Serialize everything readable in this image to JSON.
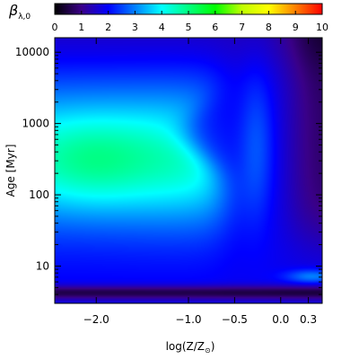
{
  "chart_data": {
    "type": "heatmap",
    "colorbar": {
      "label": "β",
      "label_subscript": "λ,0",
      "range": [
        0,
        10
      ],
      "ticks": [
        "0",
        "1",
        "2",
        "3",
        "4",
        "5",
        "6",
        "7",
        "8",
        "9",
        "10"
      ],
      "colors": [
        "#000000",
        "#3a0088",
        "#0000ff",
        "#0080ff",
        "#00ffff",
        "#00ff80",
        "#00ff00",
        "#c0ff00",
        "#ffff00",
        "#ff8000",
        "#ff0000"
      ]
    },
    "xlabel": "log(Z/Z",
    "xlabel_subscript": "⊙",
    "xlabel_close": ")",
    "xlim": [
      -2.45,
      0.45
    ],
    "x_ticks": [
      {
        "value": -2.0,
        "label": "−2.0"
      },
      {
        "value": -1.0,
        "label": "−1.0"
      },
      {
        "value": -0.5,
        "label": "−0.5"
      },
      {
        "value": 0.0,
        "label": "0.0"
      },
      {
        "value": 0.3,
        "label": "0.3"
      }
    ],
    "ylabel": "Age [Myr]",
    "ylim_myr": [
      3,
      16000
    ],
    "y_scale": "log",
    "y_ticks": [
      {
        "value": 10,
        "label": "10"
      },
      {
        "value": 100,
        "label": "100"
      },
      {
        "value": 1000,
        "label": "1000"
      },
      {
        "value": 10000,
        "label": "10000"
      }
    ],
    "grid": false
  }
}
